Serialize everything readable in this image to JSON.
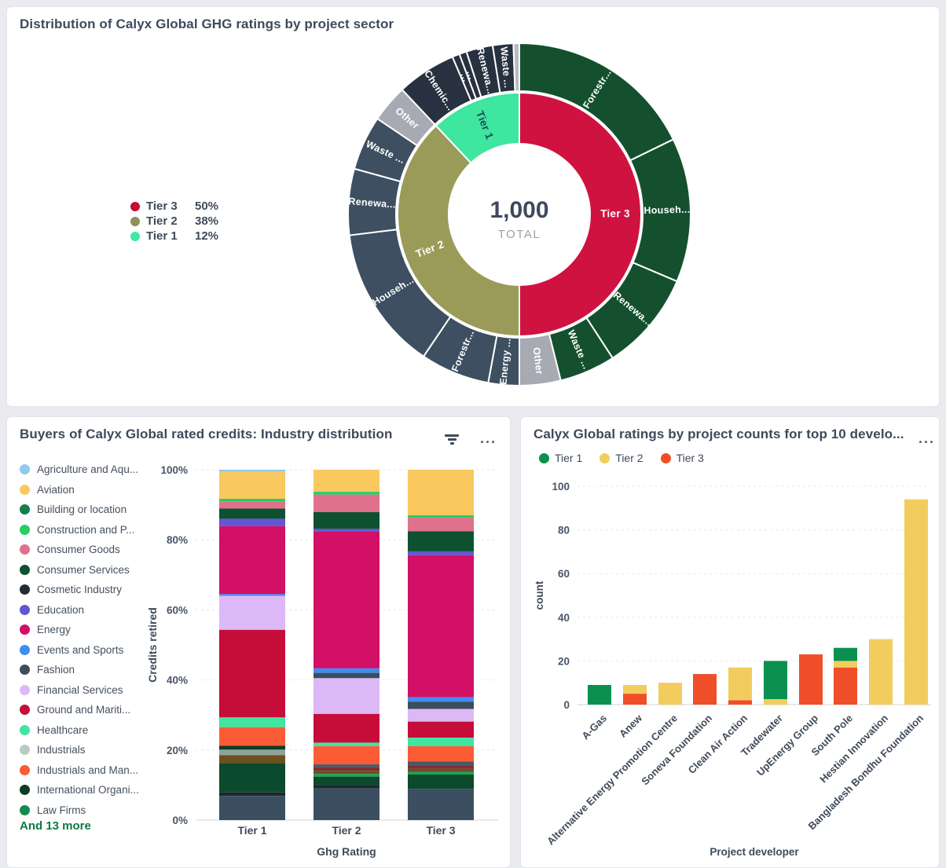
{
  "panels": {
    "sunburst": {
      "title": "Distribution of Calyx Global GHG ratings by project sector"
    },
    "industry": {
      "title": "Buyers of Calyx Global rated credits: Industry distribution",
      "legend_more": "And 13 more",
      "kebab": "...",
      "filter_icon": "filter-icon"
    },
    "developers": {
      "title": "Calyx Global ratings by project counts for top 10 develo...",
      "kebab": "..."
    }
  },
  "chart_data": [
    {
      "type": "sunburst",
      "title": "Distribution of Calyx Global GHG ratings by project sector",
      "center_value": "1,000",
      "center_label": "TOTAL",
      "legend": [
        {
          "label": "Tier 3",
          "value": "50%",
          "color": "#c60b35"
        },
        {
          "label": "Tier 2",
          "value": "38%",
          "color": "#8f9258"
        },
        {
          "label": "Tier 1",
          "value": "12%",
          "color": "#41e8a3"
        }
      ],
      "inner_ring": [
        {
          "label": "Tier 3",
          "pct": 50,
          "a0": 0,
          "a1": 180,
          "color": "#d01240",
          "text": "#ffffff"
        },
        {
          "label": "Tier 2",
          "pct": 38,
          "a0": 180,
          "a1": 316.8,
          "color": "#9a9b58",
          "text": "#ffffff"
        },
        {
          "label": "Tier 1",
          "pct": 12,
          "a0": 316.8,
          "a1": 360,
          "color": "#3ee6a0",
          "text": "#214a56"
        }
      ],
      "outer_ring": [
        {
          "tier": "Tier 3",
          "label": "Forestr...",
          "a0": 0,
          "a1": 64,
          "color": "#14502e"
        },
        {
          "tier": "Tier 3",
          "label": "Househ...",
          "a0": 64,
          "a1": 113,
          "color": "#14502e"
        },
        {
          "tier": "Tier 3",
          "label": "Renewa...",
          "a0": 113,
          "a1": 147,
          "color": "#14502e"
        },
        {
          "tier": "Tier 3",
          "label": "Waste ...",
          "a0": 147,
          "a1": 166,
          "color": "#14502e"
        },
        {
          "tier": "Tier 3",
          "label": "Other",
          "a0": 166,
          "a1": 180,
          "color": "#a7aab2"
        },
        {
          "tier": "Tier 2",
          "label": "Energy ...",
          "a0": 180,
          "a1": 190.5,
          "color": "#3d4f60"
        },
        {
          "tier": "Tier 2",
          "label": "Forestr...",
          "a0": 190.5,
          "a1": 214,
          "color": "#3d4f60"
        },
        {
          "tier": "Tier 2",
          "label": "Househ...",
          "a0": 214,
          "a1": 263,
          "color": "#3d4f60"
        },
        {
          "tier": "Tier 2",
          "label": "Renewa...",
          "a0": 263,
          "a1": 285.5,
          "color": "#3d4f60"
        },
        {
          "tier": "Tier 2",
          "label": "Waste ...",
          "a0": 285.5,
          "a1": 304,
          "color": "#3d4f60"
        },
        {
          "tier": "Tier 2",
          "label": "Other",
          "a0": 304,
          "a1": 316.8,
          "color": "#a7aab2"
        },
        {
          "tier": "Tier 1",
          "label": "Chemic...",
          "a0": 316.8,
          "a1": 337,
          "color": "#27313f"
        },
        {
          "tier": "Tier 1",
          "label": "...",
          "a0": 337,
          "a1": 339.5,
          "color": "#27313f"
        },
        {
          "tier": "Tier 1",
          "label": "...",
          "a0": 339.5,
          "a1": 342,
          "color": "#27313f"
        },
        {
          "tier": "Tier 1",
          "label": "Renewa...",
          "a0": 342,
          "a1": 351,
          "color": "#27313f"
        },
        {
          "tier": "Tier 1",
          "label": "Waste ...",
          "a0": 351,
          "a1": 358,
          "color": "#27313f"
        },
        {
          "tier": "Tier 1",
          "label": "",
          "a0": 358,
          "a1": 360,
          "color": "#b9bcc4"
        }
      ]
    },
    {
      "type": "stacked-bar-100",
      "title": "Buyers of Calyx Global rated credits: Industry distribution",
      "xlabel": "Ghg Rating",
      "ylabel": "Credits retired",
      "yticks": [
        "0%",
        "20%",
        "40%",
        "60%",
        "80%",
        "100%"
      ],
      "categories": [
        "Tier 1",
        "Tier 2",
        "Tier 3"
      ],
      "legend": [
        {
          "label": "Agriculture and Aqu...",
          "color": "#8ecbec"
        },
        {
          "label": "Aviation",
          "color": "#f9c85e"
        },
        {
          "label": "Building or location",
          "color": "#15804a"
        },
        {
          "label": "Construction and P...",
          "color": "#25cf63"
        },
        {
          "label": "Consumer Goods",
          "color": "#e0718c"
        },
        {
          "label": "Consumer Services",
          "color": "#0e5131"
        },
        {
          "label": "Cosmetic Industry",
          "color": "#242b33"
        },
        {
          "label": "Education",
          "color": "#6356d4"
        },
        {
          "label": "Energy",
          "color": "#d11066"
        },
        {
          "label": "Events and Sports",
          "color": "#3f8df2"
        },
        {
          "label": "Fashion",
          "color": "#3c4d5c"
        },
        {
          "label": "Financial Services",
          "color": "#ddb8f7"
        },
        {
          "label": "Ground and Mariti...",
          "color": "#c60c39"
        },
        {
          "label": "Healthcare",
          "color": "#40e5a2"
        },
        {
          "label": "Industrials",
          "color": "#b7cdc0"
        },
        {
          "label": "Industrials and Man...",
          "color": "#fb5b35"
        },
        {
          "label": "International Organi...",
          "color": "#0b3d26"
        },
        {
          "label": "Law Firms",
          "color": "#128a4f"
        }
      ],
      "legend_more": "And 13 more",
      "bars": [
        {
          "category": "Tier 1",
          "segments_top_to_bottom": [
            {
              "label": "Agriculture and Aqu...",
              "color": "#8ecbec",
              "pct": 0.6
            },
            {
              "label": "Aviation",
              "color": "#f9c85e",
              "pct": 7.7
            },
            {
              "label": "Construction and P...",
              "color": "#25cf63",
              "pct": 0.7
            },
            {
              "label": "Consumer Goods",
              "color": "#e0718c",
              "pct": 2.1
            },
            {
              "label": "Consumer Services",
              "color": "#0e5131",
              "pct": 2.9
            },
            {
              "label": "Education",
              "color": "#6356d4",
              "pct": 2.1
            },
            {
              "label": "Energy",
              "color": "#d11066",
              "pct": 19.4
            },
            {
              "label": "Events and Sports",
              "color": "#3f8df2",
              "pct": 0.5
            },
            {
              "label": "Financial Services",
              "color": "#ddb8f7",
              "pct": 9.7
            },
            {
              "label": "Ground and Mariti...",
              "color": "#c60c39",
              "pct": 25.0
            },
            {
              "label": "Healthcare",
              "color": "#40e5a2",
              "pct": 2.8
            },
            {
              "label": "Industrials and Man...",
              "color": "#fb5b35",
              "pct": 5.3
            },
            {
              "label": "International Organi...",
              "color": "#0b3d26",
              "pct": 1.1
            },
            {
              "label": "",
              "color": "#8fa399",
              "pct": 1.6
            },
            {
              "label": "",
              "color": "#6d501c",
              "pct": 2.2
            },
            {
              "label": "",
              "color": "#0b4a2c",
              "pct": 8.4
            },
            {
              "label": "",
              "color": "#1d2731",
              "pct": 1.0
            },
            {
              "label": "",
              "color": "#3b4f61",
              "pct": 6.9
            }
          ]
        },
        {
          "category": "Tier 2",
          "segments_top_to_bottom": [
            {
              "label": "Aviation",
              "color": "#f9c85e",
              "pct": 6.3
            },
            {
              "label": "Construction and P...",
              "color": "#25cf63",
              "pct": 0.8
            },
            {
              "label": "Consumer Goods",
              "color": "#e0718c",
              "pct": 5.0
            },
            {
              "label": "Consumer Services",
              "color": "#0e5131",
              "pct": 4.8
            },
            {
              "label": "Education",
              "color": "#6356d4",
              "pct": 0.8
            },
            {
              "label": "Energy",
              "color": "#d11066",
              "pct": 39.0
            },
            {
              "label": "Events and Sports",
              "color": "#3f8df2",
              "pct": 1.3
            },
            {
              "label": "Fashion",
              "color": "#3c4d5c",
              "pct": 1.5
            },
            {
              "label": "Financial Services",
              "color": "#ddb8f7",
              "pct": 10.2
            },
            {
              "label": "Ground and Mariti...",
              "color": "#c60c39",
              "pct": 8.2
            },
            {
              "label": "Healthcare",
              "color": "#40e5a2",
              "pct": 1.0
            },
            {
              "label": "Industrials and Man...",
              "color": "#fb5b35",
              "pct": 5.2
            },
            {
              "label": "",
              "color": "#49596a",
              "pct": 0.8
            },
            {
              "label": "",
              "color": "#7e2f36",
              "pct": 1.0
            },
            {
              "label": "",
              "color": "#6d501c",
              "pct": 0.9
            },
            {
              "label": "",
              "color": "#1ba55a",
              "pct": 0.8
            },
            {
              "label": "",
              "color": "#0b4a2c",
              "pct": 2.4
            },
            {
              "label": "",
              "color": "#1d2731",
              "pct": 0.9
            },
            {
              "label": "",
              "color": "#3b4f61",
              "pct": 9.1
            }
          ]
        },
        {
          "category": "Tier 3",
          "segments_top_to_bottom": [
            {
              "label": "Aviation",
              "color": "#f9c85e",
              "pct": 13.0
            },
            {
              "label": "Construction and P...",
              "color": "#25cf63",
              "pct": 0.7
            },
            {
              "label": "Consumer Goods",
              "color": "#e0718c",
              "pct": 3.9
            },
            {
              "label": "Consumer Services",
              "color": "#0e5131",
              "pct": 5.7
            },
            {
              "label": "Education",
              "color": "#6356d4",
              "pct": 1.1
            },
            {
              "label": "Energy",
              "color": "#d11066",
              "pct": 40.5
            },
            {
              "label": "Events and Sports",
              "color": "#3f8df2",
              "pct": 1.3
            },
            {
              "label": "Fashion",
              "color": "#3c4d5c",
              "pct": 2.1
            },
            {
              "label": "Financial Services",
              "color": "#ddb8f7",
              "pct": 3.6
            },
            {
              "label": "Ground and Mariti...",
              "color": "#c60c39",
              "pct": 4.6
            },
            {
              "label": "Healthcare",
              "color": "#40e5a2",
              "pct": 2.4
            },
            {
              "label": "Industrials and Man...",
              "color": "#fb5b35",
              "pct": 4.4
            },
            {
              "label": "",
              "color": "#49596a",
              "pct": 1.1
            },
            {
              "label": "",
              "color": "#7e2f36",
              "pct": 1.0
            },
            {
              "label": "",
              "color": "#6d501c",
              "pct": 0.9
            },
            {
              "label": "",
              "color": "#1ba55a",
              "pct": 0.7
            },
            {
              "label": "",
              "color": "#0b4a2c",
              "pct": 4.1
            },
            {
              "label": "",
              "color": "#3b4f61",
              "pct": 8.9
            }
          ]
        }
      ]
    },
    {
      "type": "stacked-bar",
      "title": "Calyx Global ratings by project counts for top 10 develo...",
      "xlabel": "Project developer",
      "ylabel": "count",
      "ymax": 100,
      "yticks": [
        0,
        20,
        40,
        60,
        80,
        100
      ],
      "legend": [
        {
          "label": "Tier 1",
          "color": "#0a9150"
        },
        {
          "label": "Tier 2",
          "color": "#f2cd5e"
        },
        {
          "label": "Tier 3",
          "color": "#f04e29"
        }
      ],
      "categories": [
        "A-Gas",
        "Anew",
        "Alternative Energy Promotion Centre",
        "Soneva Foundation",
        "Clean Air Action",
        "Tradewater",
        "UpEnergy Group",
        "South Pole",
        "Hestian Innovation",
        "Bangladesh Bondhu Foundation"
      ],
      "bars": [
        {
          "category": "A-Gas",
          "segments_bottom_to_top": [
            {
              "tier": "Tier 1",
              "color": "#0a9150",
              "value": 9
            }
          ]
        },
        {
          "category": "Anew",
          "segments_bottom_to_top": [
            {
              "tier": "Tier 3",
              "color": "#f04e29",
              "value": 5
            },
            {
              "tier": "Tier 2",
              "color": "#f2cd5e",
              "value": 4
            }
          ]
        },
        {
          "category": "Alternative Energy Promotion Centre",
          "segments_bottom_to_top": [
            {
              "tier": "Tier 2",
              "color": "#f2cd5e",
              "value": 10
            }
          ]
        },
        {
          "category": "Soneva Foundation",
          "segments_bottom_to_top": [
            {
              "tier": "Tier 3",
              "color": "#f04e29",
              "value": 14
            }
          ]
        },
        {
          "category": "Clean Air Action",
          "segments_bottom_to_top": [
            {
              "tier": "Tier 3",
              "color": "#f04e29",
              "value": 2
            },
            {
              "tier": "Tier 2",
              "color": "#f2cd5e",
              "value": 15
            }
          ]
        },
        {
          "category": "Tradewater",
          "segments_bottom_to_top": [
            {
              "tier": "Tier 2",
              "color": "#f2cd5e",
              "value": 2.5
            },
            {
              "tier": "Tier 1",
              "color": "#0a9150",
              "value": 17.5
            }
          ]
        },
        {
          "category": "UpEnergy Group",
          "segments_bottom_to_top": [
            {
              "tier": "Tier 3",
              "color": "#f04e29",
              "value": 23
            }
          ]
        },
        {
          "category": "South Pole",
          "segments_bottom_to_top": [
            {
              "tier": "Tier 3",
              "color": "#f04e29",
              "value": 17
            },
            {
              "tier": "Tier 2",
              "color": "#f2cd5e",
              "value": 3
            },
            {
              "tier": "Tier 1",
              "color": "#0a9150",
              "value": 6
            }
          ]
        },
        {
          "category": "Hestian Innovation",
          "segments_bottom_to_top": [
            {
              "tier": "Tier 2",
              "color": "#f2cd5e",
              "value": 30
            }
          ]
        },
        {
          "category": "Bangladesh Bondhu Foundation",
          "segments_bottom_to_top": [
            {
              "tier": "Tier 2",
              "color": "#f2cd5e",
              "value": 94
            }
          ]
        }
      ]
    }
  ]
}
